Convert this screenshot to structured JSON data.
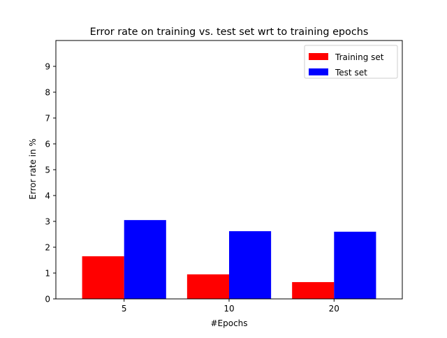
{
  "chart_data": {
    "type": "bar",
    "title": "Error rate on training vs. test set wrt to training epochs",
    "xlabel": "#Epochs",
    "ylabel": "Error rate in %",
    "categories": [
      "5",
      "10",
      "20"
    ],
    "series": [
      {
        "name": "Training set",
        "color": "#ff0000",
        "values": [
          1.65,
          0.95,
          0.65
        ]
      },
      {
        "name": "Test set",
        "color": "#0000ff",
        "values": [
          3.05,
          2.62,
          2.6
        ]
      }
    ],
    "ylim": [
      0,
      10
    ],
    "yticks": [
      "0",
      "1",
      "2",
      "3",
      "4",
      "5",
      "6",
      "7",
      "8",
      "9"
    ],
    "grid": false,
    "legend": "top-right"
  }
}
